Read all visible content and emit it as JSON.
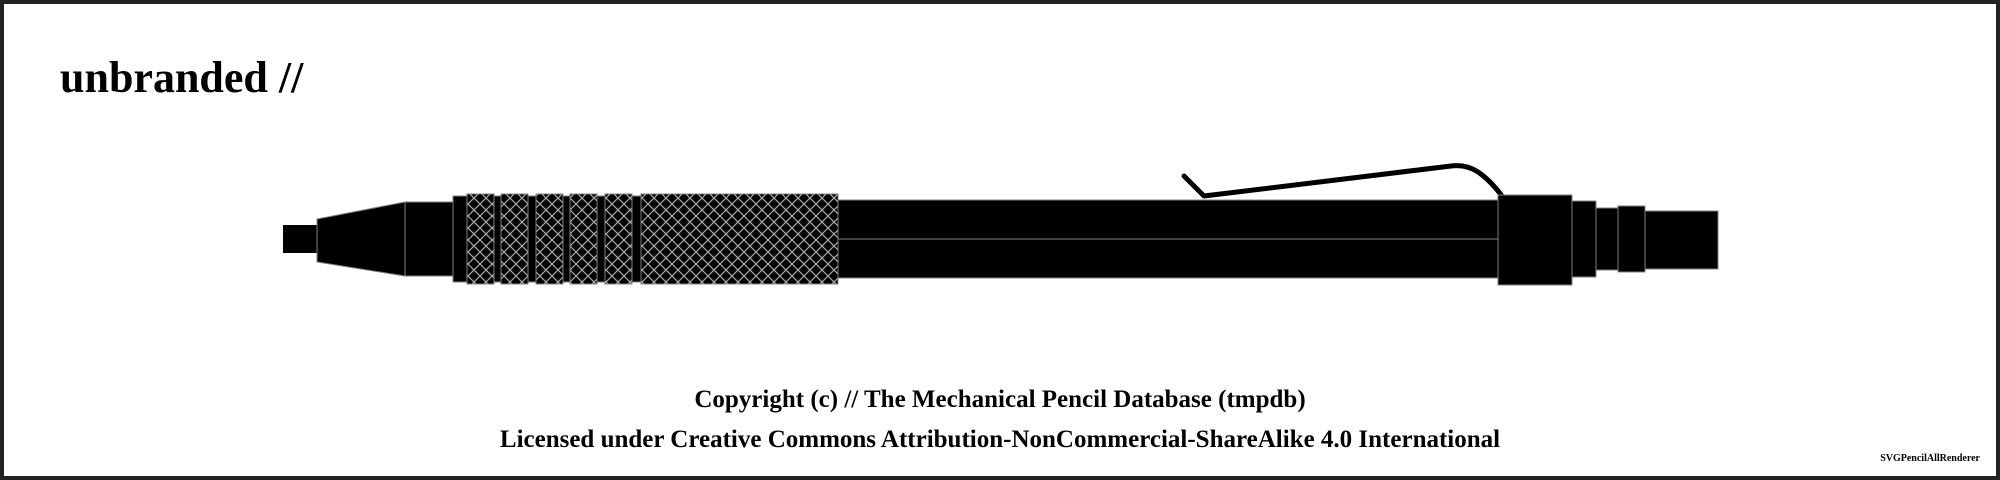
{
  "header": {
    "title": "unbranded //"
  },
  "footer": {
    "copyright": "Copyright (c) // The Mechanical Pencil Database (tmpdb)",
    "license": "Licensed under Creative Commons Attribution-NonCommercial-ShareAlike 4.0 International",
    "renderer": "SVGPencilAllRenderer"
  },
  "colors": {
    "body": "#000000",
    "edge": "#808080",
    "knurl": "#aaaaaa",
    "border": "#222222",
    "background": "#ffffff"
  }
}
